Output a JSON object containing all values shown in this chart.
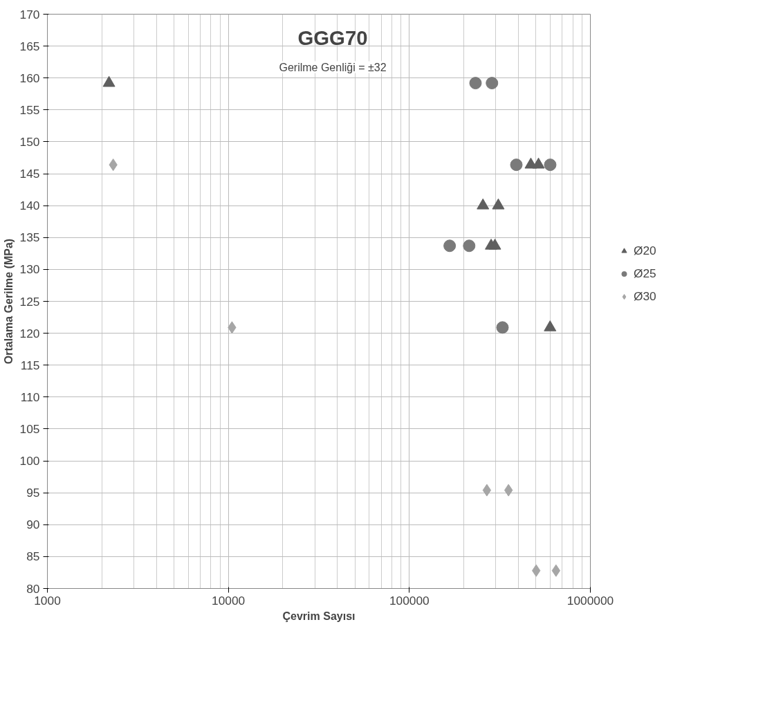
{
  "chart_data": {
    "type": "scatter",
    "title": "GGG70",
    "subtitle": "Gerilme Genliği = ±32",
    "xlabel": "Çevrim Sayısı",
    "ylabel": "Ortalama Gerilme (MPa)",
    "log": "x",
    "xlim": [
      1000,
      1000000
    ],
    "xticks": [
      1000,
      10000,
      100000,
      1000000
    ],
    "ylim": [
      80,
      170
    ],
    "yticks": [
      80,
      85,
      90,
      95,
      100,
      105,
      110,
      115,
      120,
      125,
      130,
      135,
      140,
      145,
      150,
      155,
      160,
      165,
      170
    ],
    "grid": true,
    "legend": "right",
    "series": [
      {
        "name": "Ø20",
        "color": "#5f5f5f",
        "marker": "triangle",
        "x": [
          2190,
          255000,
          310000,
          283000,
          297000,
          469000,
          517000,
          599000
        ],
        "values": [
          159.2,
          140,
          140,
          133.7,
          133.7,
          146.4,
          146.4,
          120.9
        ]
      },
      {
        "name": "Ø25",
        "color": "#7a7a7a",
        "marker": "circle",
        "x": [
          232000,
          286000,
          390000,
          600000,
          167000,
          214000,
          327000
        ],
        "values": [
          159.2,
          159.2,
          146.4,
          146.4,
          133.7,
          133.7,
          120.9
        ]
      },
      {
        "name": "Ø30",
        "color": "#a6a6a6",
        "marker": "diamond",
        "x": [
          2310,
          10470,
          268000,
          353000,
          502000,
          646000
        ],
        "values": [
          146.4,
          120.9,
          95.4,
          95.4,
          82.8,
          82.8
        ]
      }
    ]
  }
}
